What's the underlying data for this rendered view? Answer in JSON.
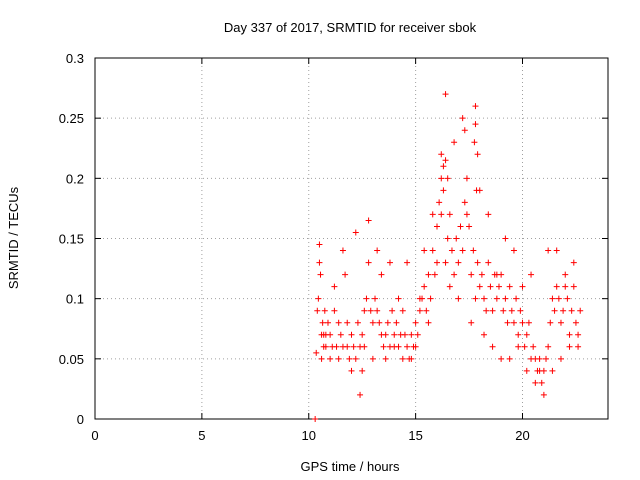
{
  "chart_data": {
    "type": "scatter",
    "title": "Day 337 of 2017, SRMTID for receiver sbok",
    "xlabel": "GPS time / hours",
    "ylabel": "SRMTID / TECUs",
    "xlim": [
      0,
      24
    ],
    "ylim": [
      0,
      0.3
    ],
    "xticks": [
      0,
      5,
      10,
      15,
      20
    ],
    "xtick_labels": [
      "0",
      "5",
      "10",
      "15",
      "20"
    ],
    "yticks": [
      0,
      0.05,
      0.1,
      0.15,
      0.2,
      0.25,
      0.3
    ],
    "ytick_labels": [
      "0",
      "0.05",
      "0.1",
      "0.15",
      "0.2",
      "0.25",
      "0.3"
    ],
    "grid": true,
    "marker": "+",
    "series": [
      {
        "name": "SRMTID",
        "color": "#ff0000",
        "x": [
          10.4,
          10.45,
          10.5,
          10.55,
          10.6,
          10.65,
          10.7,
          10.75,
          10.8,
          10.9,
          11.0,
          11.1,
          11.2,
          11.3,
          11.4,
          11.5,
          11.6,
          11.7,
          11.8,
          11.9,
          12.0,
          12.1,
          12.2,
          12.3,
          12.4,
          12.5,
          12.6,
          12.7,
          12.8,
          12.9,
          13.0,
          13.1,
          13.2,
          13.3,
          13.4,
          13.5,
          13.6,
          13.7,
          13.8,
          13.9,
          14.0,
          14.1,
          14.2,
          14.3,
          14.4,
          14.5,
          14.6,
          14.7,
          14.8,
          14.9,
          15.0,
          15.1,
          15.2,
          15.3,
          15.4,
          15.5,
          15.6,
          15.7,
          15.8,
          15.9,
          16.0,
          16.1,
          16.2,
          16.3,
          16.4,
          16.5,
          16.6,
          16.7,
          16.8,
          16.9,
          17.0,
          17.1,
          17.2,
          17.3,
          17.4,
          17.5,
          17.6,
          17.7,
          17.8,
          17.9,
          18.0,
          18.1,
          18.2,
          18.3,
          18.4,
          18.5,
          18.6,
          18.7,
          18.8,
          18.9,
          19.0,
          19.1,
          19.2,
          19.3,
          19.4,
          19.5,
          19.6,
          19.7,
          19.8,
          19.9,
          20.0,
          20.1,
          20.2,
          20.3,
          20.4,
          20.5,
          20.6,
          20.7,
          20.8,
          20.9,
          21.0,
          21.1,
          21.2,
          21.3,
          21.4,
          21.5,
          21.6,
          21.7,
          21.8,
          21.9,
          22.0,
          22.1,
          22.2,
          22.3,
          22.4,
          22.5,
          22.6,
          22.7,
          10.3,
          10.35,
          10.5,
          10.6,
          10.7,
          10.8,
          11.0,
          11.2,
          11.4,
          11.6,
          11.8,
          12.0,
          12.2,
          12.4,
          12.5,
          12.6,
          12.8,
          13.0,
          13.2,
          13.4,
          13.6,
          13.8,
          14.0,
          14.2,
          14.4,
          14.6,
          14.8,
          15.0,
          15.2,
          15.4,
          15.6,
          15.8,
          16.0,
          16.2,
          16.4,
          16.6,
          16.8,
          17.0,
          17.2,
          17.4,
          17.6,
          17.8,
          18.0,
          18.2,
          18.4,
          18.6,
          18.8,
          19.0,
          19.2,
          19.4,
          19.6,
          19.8,
          20.0,
          20.2,
          20.4,
          20.6,
          20.8,
          21.0,
          21.2,
          21.4,
          21.6,
          21.8,
          22.0,
          22.2,
          22.4,
          22.6,
          16.3,
          17.3,
          17.75,
          17.8,
          16.5,
          16.4,
          17.9,
          16.2,
          17.85
        ],
        "y": [
          0.09,
          0.1,
          0.13,
          0.12,
          0.07,
          0.08,
          0.06,
          0.09,
          0.07,
          0.08,
          0.07,
          0.06,
          0.09,
          0.06,
          0.08,
          0.07,
          0.06,
          0.12,
          0.08,
          0.05,
          0.07,
          0.06,
          0.05,
          0.08,
          0.06,
          0.07,
          0.09,
          0.1,
          0.13,
          0.09,
          0.08,
          0.1,
          0.09,
          0.08,
          0.07,
          0.06,
          0.07,
          0.08,
          0.06,
          0.09,
          0.07,
          0.08,
          0.06,
          0.07,
          0.09,
          0.07,
          0.06,
          0.05,
          0.07,
          0.06,
          0.08,
          0.07,
          0.09,
          0.1,
          0.11,
          0.09,
          0.12,
          0.1,
          0.14,
          0.12,
          0.16,
          0.18,
          0.2,
          0.19,
          0.13,
          0.15,
          0.11,
          0.14,
          0.12,
          0.15,
          0.13,
          0.16,
          0.14,
          0.18,
          0.2,
          0.16,
          0.12,
          0.14,
          0.1,
          0.13,
          0.11,
          0.12,
          0.1,
          0.09,
          0.13,
          0.11,
          0.09,
          0.12,
          0.1,
          0.11,
          0.12,
          0.09,
          0.1,
          0.08,
          0.11,
          0.09,
          0.08,
          0.1,
          0.07,
          0.09,
          0.08,
          0.06,
          0.07,
          0.08,
          0.05,
          0.06,
          0.05,
          0.04,
          0.05,
          0.03,
          0.04,
          0.05,
          0.06,
          0.08,
          0.1,
          0.09,
          0.11,
          0.1,
          0.08,
          0.09,
          0.11,
          0.1,
          0.07,
          0.09,
          0.11,
          0.08,
          0.07,
          0.09,
          0.0,
          0.055,
          0.145,
          0.05,
          0.07,
          0.06,
          0.05,
          0.11,
          0.05,
          0.14,
          0.06,
          0.04,
          0.155,
          0.02,
          0.04,
          0.06,
          0.165,
          0.05,
          0.14,
          0.12,
          0.05,
          0.13,
          0.06,
          0.1,
          0.05,
          0.13,
          0.05,
          0.06,
          0.1,
          0.14,
          0.08,
          0.17,
          0.13,
          0.22,
          0.27,
          0.17,
          0.23,
          0.1,
          0.25,
          0.17,
          0.08,
          0.26,
          0.19,
          0.07,
          0.17,
          0.06,
          0.12,
          0.05,
          0.15,
          0.05,
          0.14,
          0.06,
          0.11,
          0.04,
          0.12,
          0.03,
          0.04,
          0.02,
          0.14,
          0.04,
          0.14,
          0.05,
          0.12,
          0.06,
          0.13,
          0.06,
          0.21,
          0.24,
          0.23,
          0.245,
          0.2,
          0.215,
          0.22,
          0.17,
          0.19
        ]
      }
    ]
  }
}
